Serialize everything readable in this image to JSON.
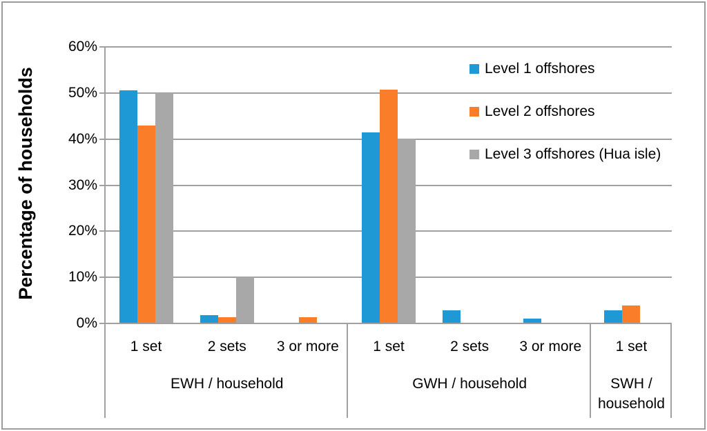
{
  "chart_data": {
    "type": "bar",
    "title": "",
    "ylabel": "Percentage of households",
    "xlabel": "",
    "ylim": [
      0,
      60
    ],
    "ytick_step": 10,
    "yticks_top_to_bottom": [
      "60%",
      "50%",
      "40%",
      "30%",
      "20%",
      "10%",
      "0%"
    ],
    "grid": true,
    "legend_position": "top-right-inside",
    "groups": [
      {
        "label": "EWH / household",
        "categories": [
          "1 set",
          "2 sets",
          "3 or more"
        ]
      },
      {
        "label": "GWH / household",
        "categories": [
          "1 set",
          "2 sets",
          "3 or more"
        ]
      },
      {
        "label": "SWH / household",
        "categories": [
          "1 set"
        ]
      }
    ],
    "series": [
      {
        "name": "Level 1 offshores",
        "color": "#1f99d5",
        "values": [
          50.5,
          1.8,
          0,
          41.4,
          2.8,
          1.0,
          2.8
        ]
      },
      {
        "name": "Level 2 offshores",
        "color": "#fa7d29",
        "values": [
          43.0,
          1.4,
          1.4,
          50.7,
          0,
          0,
          3.9
        ]
      },
      {
        "name": "Level 3 offshores (Hua isle)",
        "color": "#a8a8a8",
        "values": [
          50.0,
          10.0,
          0,
          40.1,
          0,
          0,
          0
        ]
      }
    ]
  }
}
